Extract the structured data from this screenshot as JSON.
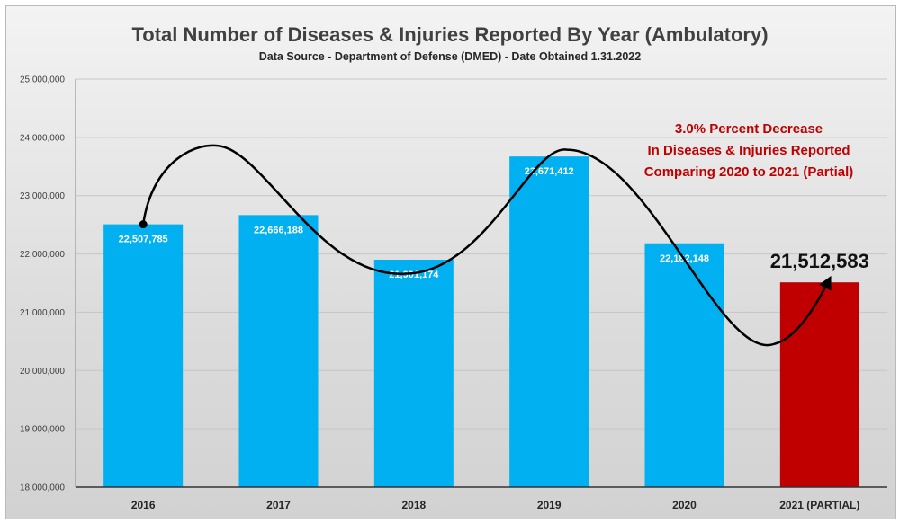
{
  "chart_data": {
    "type": "bar",
    "title": "Total Number of Diseases & Injuries Reported By Year (Ambulatory)",
    "subtitle": "Data Source - Department of Defense (DMED) - Date Obtained 1.31.2022",
    "categories": [
      "2016",
      "2017",
      "2018",
      "2019",
      "2020",
      "2021 (PARTIAL)"
    ],
    "values": [
      22507785,
      22666188,
      21901174,
      23671412,
      22182148,
      21512583
    ],
    "data_labels": [
      "22,507,785",
      "22,666,188",
      "21,901,174",
      "23,671,412",
      "22,182,148",
      "21,512,583"
    ],
    "ylim": [
      18000000,
      25000000
    ],
    "yticks": [
      18000000,
      19000000,
      20000000,
      21000000,
      22000000,
      23000000,
      24000000,
      25000000
    ],
    "ytick_labels": [
      "18,000,000",
      "19,000,000",
      "20,000,000",
      "21,000,000",
      "22,000,000",
      "23,000,000",
      "24,000,000",
      "25,000,000"
    ],
    "xlabel": "",
    "ylabel": "",
    "grid": true,
    "colors": {
      "bars": "#00b0f0",
      "highlight": "#c00000",
      "annotation": "#c00000",
      "curve": "#000000"
    },
    "highlight_index": 5,
    "annotation": [
      "3.0% Percent Decrease",
      "In Diseases & Injuries Reported",
      "Comparing 2020 to 2021 (Partial)"
    ],
    "trend_curve": "freehand black curve with arrow through bar tops"
  }
}
